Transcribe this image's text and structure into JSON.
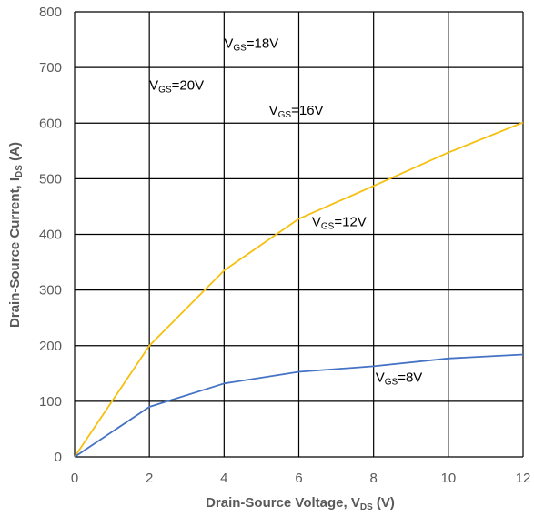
{
  "chart_data": {
    "type": "line",
    "title": "",
    "xlabel": {
      "main": "Drain-Source Voltage, V",
      "sub": "DS",
      "unit": " (V)"
    },
    "ylabel": {
      "main": "Drain-Source Current, I",
      "sub": "DS",
      "unit": " (A)"
    },
    "xlim": [
      0,
      12
    ],
    "ylim": [
      0,
      800
    ],
    "xticks": [
      "0",
      "2",
      "4",
      "6",
      "8",
      "10",
      "12"
    ],
    "yticks": [
      "0",
      "100",
      "200",
      "300",
      "400",
      "500",
      "600",
      "700",
      "800"
    ],
    "grid": true,
    "series": [
      {
        "color": "#F5C00F",
        "points": [
          [
            0,
            0
          ],
          [
            2,
            200
          ],
          [
            4,
            335
          ],
          [
            6,
            428
          ],
          [
            8,
            487
          ],
          [
            10,
            547
          ],
          [
            12,
            601
          ]
        ]
      },
      {
        "color": "#4472C4",
        "points": [
          [
            0,
            0
          ],
          [
            2,
            90
          ],
          [
            4,
            132
          ],
          [
            6,
            153
          ],
          [
            8,
            163
          ],
          [
            10,
            177
          ],
          [
            12,
            184
          ]
        ]
      }
    ],
    "annotations": [
      {
        "main": "V",
        "sub": "GS",
        "rest": "=18V",
        "x": 4.0,
        "y": 735
      },
      {
        "main": "V",
        "sub": "GS",
        "rest": "=20V",
        "x": 2.0,
        "y": 660
      },
      {
        "main": "V",
        "sub": "GS",
        "rest": "=16V",
        "x": 5.2,
        "y": 615
      },
      {
        "main": "V",
        "sub": "GS",
        "rest": "=12V",
        "x": 6.35,
        "y": 415
      },
      {
        "main": "V",
        "sub": "GS",
        "rest": "=8V",
        "x": 8.05,
        "y": 135
      }
    ]
  }
}
